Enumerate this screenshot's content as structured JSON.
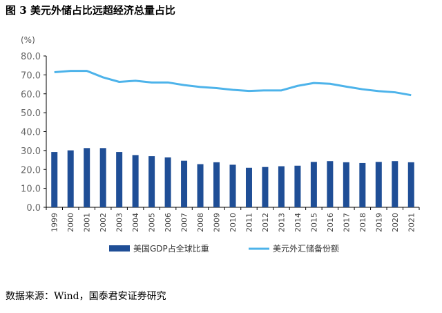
{
  "title": "图 3 美元外储占比远超经济总量占比",
  "source": "数据来源：Wind，国泰君安证券研究",
  "chart_data": {
    "type": "bar+line",
    "ylabel": "(%)",
    "ylim": [
      0,
      80
    ],
    "yticks": [
      "0.0",
      "10.0",
      "20.0",
      "30.0",
      "40.0",
      "50.0",
      "60.0",
      "70.0",
      "80.0"
    ],
    "categories": [
      "1999",
      "2000",
      "2001",
      "2002",
      "2003",
      "2004",
      "2005",
      "2006",
      "2007",
      "2008",
      "2009",
      "2010",
      "2011",
      "2012",
      "2013",
      "2014",
      "2015",
      "2016",
      "2017",
      "2018",
      "2019",
      "2020",
      "2021"
    ],
    "series": [
      {
        "name": "美国GDP占全球比重",
        "type": "bar",
        "color": "#1f4e96",
        "values": [
          29.2,
          30.1,
          31.3,
          31.3,
          29.2,
          27.6,
          27.0,
          26.4,
          24.6,
          22.8,
          23.8,
          22.5,
          20.9,
          21.3,
          21.7,
          22.0,
          24.0,
          24.4,
          23.8,
          23.4,
          24.0,
          24.4,
          23.8
        ]
      },
      {
        "name": "美元外汇储备份额",
        "type": "line",
        "color": "#4db3ea",
        "values": [
          71.4,
          72.1,
          72.1,
          68.7,
          66.3,
          66.9,
          66.0,
          66.0,
          64.6,
          63.6,
          63.0,
          62.1,
          61.5,
          61.8,
          61.8,
          64.2,
          65.7,
          65.3,
          63.8,
          62.4,
          61.4,
          60.8,
          59.3
        ]
      }
    ],
    "legend": "bottom",
    "grid": false
  }
}
